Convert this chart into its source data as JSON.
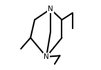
{
  "background_color": "#ffffff",
  "bond_color": "#000000",
  "N_color": "#000000",
  "line_width": 1.5,
  "font_size": 7.5,
  "figsize": [
    1.46,
    1.01
  ],
  "dpi": 100
}
